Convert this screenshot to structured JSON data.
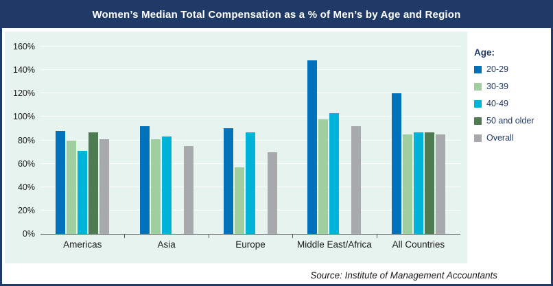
{
  "chart_data": {
    "type": "bar",
    "title": "Women’s Median Total Compensation as a % of Men’s by Age and Region",
    "legend_title": "Age:",
    "legend_position": "right",
    "categories": [
      "Americas",
      "Asia",
      "Europe",
      "Middle East/Africa",
      "All Countries"
    ],
    "series": [
      {
        "name": "20-29",
        "color": "#0072bc",
        "values": [
          88,
          92,
          90,
          148,
          120
        ]
      },
      {
        "name": "30-39",
        "color": "#9fce9f",
        "values": [
          80,
          81,
          57,
          98,
          85
        ]
      },
      {
        "name": "40-49",
        "color": "#00b3d9",
        "values": [
          71,
          83,
          87,
          103,
          87
        ]
      },
      {
        "name": "50 and older",
        "color": "#4e7b52",
        "values": [
          87,
          null,
          null,
          null,
          87
        ]
      },
      {
        "name": "Overall",
        "color": "#a7a9ac",
        "values": [
          81,
          75,
          70,
          92,
          85
        ]
      }
    ],
    "ylim": [
      0,
      160
    ],
    "yticks": [
      0,
      20,
      40,
      60,
      80,
      100,
      120,
      140,
      160
    ],
    "ytick_suffix": "%",
    "grid": true,
    "colors": {
      "header_background": "#1f3a66",
      "plot_background": "#e7f3ee",
      "gridline": "#ffffff"
    }
  },
  "footer": {
    "source": "Source: Institute of Management Accountants"
  }
}
